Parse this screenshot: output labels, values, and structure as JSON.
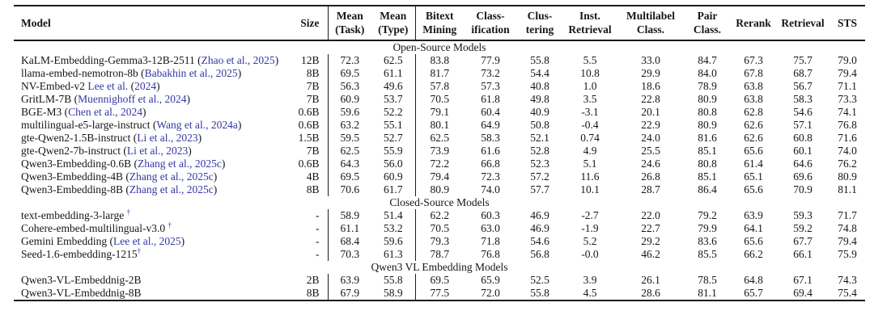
{
  "colors": {
    "citation_blue": "#3437a3",
    "text": "#161616",
    "rule": "#1c1c1c"
  },
  "table": {
    "columns": [
      "Model",
      "Size",
      "Mean\n(Task)",
      "Mean\n(Type)",
      "Bitext\nMining",
      "Class-\nification",
      "Clus-\ntering",
      "Inst.\nRetrieval",
      "Multilabel\nClass.",
      "Pair\nClass.",
      "Rerank",
      "Retrieval",
      "STS"
    ],
    "sections": [
      {
        "title": "Open-Source Models",
        "rows": [
          {
            "name": "KaLM-Embedding-Gemma3-12B-2511",
            "cite_paren": "Zhao et al., 2025",
            "size": "12B",
            "values": [
              "72.3",
              "62.5",
              "83.8",
              "77.9",
              "55.8",
              "5.5",
              "33.0",
              "84.7",
              "67.3",
              "75.7",
              "79.0"
            ]
          },
          {
            "name": "llama-embed-nemotron-8b",
            "cite_paren": "Babakhin et al., 2025",
            "size": "8B",
            "values": [
              "69.5",
              "61.1",
              "81.7",
              "73.2",
              "54.4",
              "10.8",
              "29.9",
              "84.0",
              "67.8",
              "68.7",
              "79.4"
            ]
          },
          {
            "name": "NV-Embed-v2",
            "cite_pre": "Lee et al.",
            "cite_paren": "2024",
            "size": "7B",
            "values": [
              "56.3",
              "49.6",
              "57.8",
              "57.3",
              "40.8",
              "1.0",
              "18.6",
              "78.9",
              "63.8",
              "56.7",
              "71.1"
            ]
          },
          {
            "name": "GritLM-7B",
            "cite_paren": "Muennighoff et al., 2024",
            "size": "7B",
            "values": [
              "60.9",
              "53.7",
              "70.5",
              "61.8",
              "49.8",
              "3.5",
              "22.8",
              "80.9",
              "63.8",
              "58.3",
              "73.3"
            ]
          },
          {
            "name": "BGE-M3",
            "cite_paren": "Chen et al., 2024",
            "size": "0.6B",
            "values": [
              "59.6",
              "52.2",
              "79.1",
              "60.4",
              "40.9",
              "-3.1",
              "20.1",
              "80.8",
              "62.8",
              "54.6",
              "74.1"
            ]
          },
          {
            "name": "multilingual-e5-large-instruct",
            "cite_paren": "Wang et al., 2024a",
            "size": "0.6B",
            "values": [
              "63.2",
              "55.1",
              "80.1",
              "64.9",
              "50.8",
              "-0.4",
              "22.9",
              "80.9",
              "62.6",
              "57.1",
              "76.8"
            ]
          },
          {
            "name": "gte-Qwen2-1.5B-instruct",
            "cite_paren": "Li et al., 2023",
            "size": "1.5B",
            "values": [
              "59.5",
              "52.7",
              "62.5",
              "58.3",
              "52.1",
              "0.74",
              "24.0",
              "81.6",
              "62.6",
              "60.8",
              "71.6"
            ]
          },
          {
            "name": "gte-Qwen2-7b-instruct",
            "cite_paren": "Li et al., 2023",
            "size": "7B",
            "values": [
              "62.5",
              "55.9",
              "73.9",
              "61.6",
              "52.8",
              "4.9",
              "25.5",
              "85.1",
              "65.6",
              "60.1",
              "74.0"
            ]
          },
          {
            "name": "Qwen3-Embedding-0.6B",
            "cite_paren": "Zhang et al., 2025c",
            "size": "0.6B",
            "values": [
              "64.3",
              "56.0",
              "72.2",
              "66.8",
              "52.3",
              "5.1",
              "24.6",
              "80.8",
              "61.4",
              "64.6",
              "76.2"
            ]
          },
          {
            "name": "Qwen3-Embedding-4B",
            "cite_paren": "Zhang et al., 2025c",
            "size": "4B",
            "values": [
              "69.5",
              "60.9",
              "79.4",
              "72.3",
              "57.2",
              "11.6",
              "26.8",
              "85.1",
              "65.1",
              "69.6",
              "80.9"
            ]
          },
          {
            "name": "Qwen3-Embedding-8B",
            "cite_paren": "Zhang et al., 2025c",
            "size": "8B",
            "values": [
              "70.6",
              "61.7",
              "80.9",
              "74.0",
              "57.7",
              "10.1",
              "28.7",
              "86.4",
              "65.6",
              "70.9",
              "81.1"
            ]
          }
        ]
      },
      {
        "title": "Closed-Source Models",
        "rows": [
          {
            "name": "text-embedding-3-large",
            "dagger": "†",
            "dagger_gap": true,
            "size": "-",
            "values": [
              "58.9",
              "51.4",
              "62.2",
              "60.3",
              "46.9",
              "-2.7",
              "22.0",
              "79.2",
              "63.9",
              "59.3",
              "71.7"
            ]
          },
          {
            "name": "Cohere-embed-multilingual-v3.0",
            "dagger": "†",
            "dagger_gap": true,
            "size": "-",
            "values": [
              "61.1",
              "53.2",
              "70.5",
              "63.0",
              "46.9",
              "-1.9",
              "22.7",
              "79.9",
              "64.1",
              "59.2",
              "74.8"
            ]
          },
          {
            "name": "Gemini Embedding",
            "cite_paren": "Lee et al., 2025",
            "size": "-",
            "values": [
              "68.4",
              "59.6",
              "79.3",
              "71.8",
              "54.6",
              "5.2",
              "29.2",
              "83.6",
              "65.6",
              "67.7",
              "79.4"
            ]
          },
          {
            "name": "Seed-1.6-embedding-1215",
            "dagger": "†",
            "dagger_gap": false,
            "size": "-",
            "values": [
              "70.3",
              "61.3",
              "78.7",
              "76.8",
              "56.8",
              "-0.0",
              "46.2",
              "85.5",
              "66.2",
              "66.1",
              "75.9"
            ]
          }
        ]
      },
      {
        "title": "Qwen3 VL Embedding Models",
        "rows": [
          {
            "name": "Qwen3-VL-Embeddnig-2B",
            "size": "2B",
            "values": [
              "63.9",
              "55.8",
              "69.5",
              "65.9",
              "52.5",
              "3.9",
              "26.1",
              "78.5",
              "64.8",
              "67.1",
              "74.3"
            ]
          },
          {
            "name": "Qwen3-VL-Embeddnig-8B",
            "size": "8B",
            "values": [
              "67.9",
              "58.9",
              "77.5",
              "72.0",
              "55.8",
              "4.5",
              "28.6",
              "81.1",
              "65.7",
              "69.4",
              "75.4"
            ]
          }
        ]
      }
    ]
  }
}
